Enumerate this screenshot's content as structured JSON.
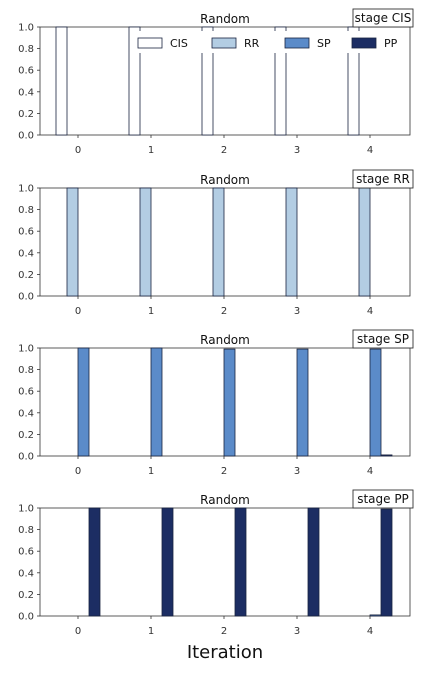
{
  "chart_data": [
    {
      "type": "bar",
      "title": "Random",
      "stage_label": "stage CIS",
      "categories": [
        "0",
        "1",
        "2",
        "3",
        "4"
      ],
      "ylim": [
        0,
        1
      ],
      "yticks": [
        "0.0",
        "0.2",
        "0.4",
        "0.6",
        "0.8",
        "1.0"
      ],
      "series": [
        {
          "name": "CIS",
          "values": [
            1.0,
            1.0,
            1.0,
            1.0,
            1.0
          ]
        },
        {
          "name": "RR",
          "values": [
            0.0,
            0.0,
            0.0,
            0.0,
            0.0
          ]
        },
        {
          "name": "SP",
          "values": [
            0.0,
            0.0,
            0.0,
            0.0,
            0.0
          ]
        },
        {
          "name": "PP",
          "values": [
            0.0,
            0.0,
            0.0,
            0.0,
            0.0
          ]
        }
      ]
    },
    {
      "type": "bar",
      "title": "Random",
      "stage_label": "stage RR",
      "categories": [
        "0",
        "1",
        "2",
        "3",
        "4"
      ],
      "ylim": [
        0,
        1
      ],
      "yticks": [
        "0.0",
        "0.2",
        "0.4",
        "0.6",
        "0.8",
        "1.0"
      ],
      "series": [
        {
          "name": "CIS",
          "values": [
            0.0,
            0.0,
            0.0,
            0.0,
            0.0
          ]
        },
        {
          "name": "RR",
          "values": [
            1.0,
            1.0,
            1.0,
            1.0,
            1.0
          ]
        },
        {
          "name": "SP",
          "values": [
            0.0,
            0.0,
            0.0,
            0.0,
            0.0
          ]
        },
        {
          "name": "PP",
          "values": [
            0.0,
            0.0,
            0.0,
            0.0,
            0.0
          ]
        }
      ]
    },
    {
      "type": "bar",
      "title": "Random",
      "stage_label": "stage SP",
      "categories": [
        "0",
        "1",
        "2",
        "3",
        "4"
      ],
      "ylim": [
        0,
        1
      ],
      "yticks": [
        "0.0",
        "0.2",
        "0.4",
        "0.6",
        "0.8",
        "1.0"
      ],
      "series": [
        {
          "name": "CIS",
          "values": [
            0.0,
            0.0,
            0.0,
            0.0,
            0.0
          ]
        },
        {
          "name": "RR",
          "values": [
            0.0,
            0.0,
            0.0,
            0.0,
            0.0
          ]
        },
        {
          "name": "SP",
          "values": [
            1.0,
            1.0,
            0.99,
            0.99,
            0.99
          ]
        },
        {
          "name": "PP",
          "values": [
            0.0,
            0.0,
            0.0,
            0.0,
            0.01
          ]
        }
      ]
    },
    {
      "type": "bar",
      "title": "Random",
      "stage_label": "stage PP",
      "categories": [
        "0",
        "1",
        "2",
        "3",
        "4"
      ],
      "ylim": [
        0,
        1
      ],
      "yticks": [
        "0.0",
        "0.2",
        "0.4",
        "0.6",
        "0.8",
        "1.0"
      ],
      "series": [
        {
          "name": "CIS",
          "values": [
            0.0,
            0.0,
            0.0,
            0.0,
            0.0
          ]
        },
        {
          "name": "RR",
          "values": [
            0.0,
            0.0,
            0.0,
            0.0,
            0.0
          ]
        },
        {
          "name": "SP",
          "values": [
            0.0,
            0.0,
            0.0,
            0.0,
            0.01
          ]
        },
        {
          "name": "PP",
          "values": [
            1.0,
            1.0,
            1.0,
            1.0,
            0.99
          ]
        }
      ]
    }
  ],
  "legend": {
    "placement": "top-right of first panel",
    "entries": [
      "CIS",
      "RR",
      "SP",
      "PP"
    ]
  },
  "xlabel": "Iteration",
  "colors": {
    "CIS": "#ffffff",
    "RR": "#b3cde3",
    "SP": "#5b8bc9",
    "PP": "#1c2d63",
    "edge": "#1a2440"
  }
}
